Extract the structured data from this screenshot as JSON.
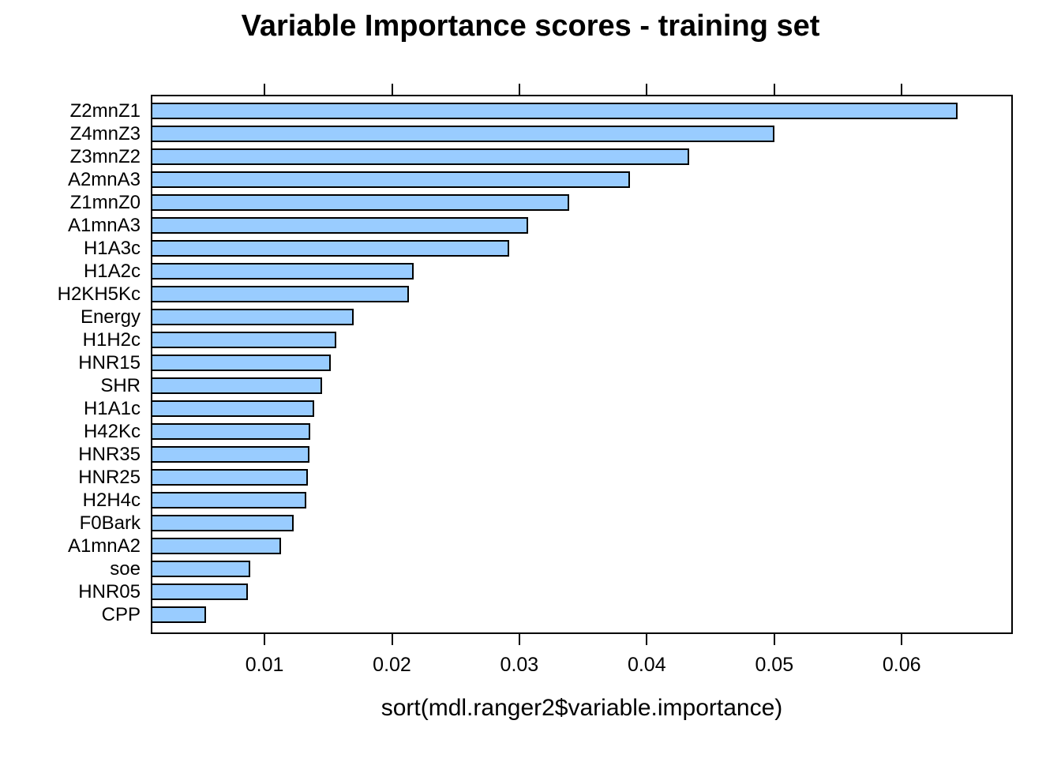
{
  "figure": {
    "background": "#ffffff",
    "text_color": "#000000"
  },
  "chart_data": {
    "type": "bar",
    "orientation": "horizontal",
    "title": "Variable Importance scores - training set",
    "xlabel": "sort(mdl.ranger2$variable.importance)",
    "ylabel": "",
    "categories_top_to_bottom": [
      "Z2mnZ1",
      "Z4mnZ3",
      "Z3mnZ2",
      "A2mnA3",
      "Z1mnZ0",
      "A1mnA3",
      "H1A3c",
      "H1A2c",
      "H2KH5Kc",
      "Energy",
      "H1H2c",
      "HNR15",
      "SHR",
      "H1A1c",
      "H42Kc",
      "HNR35",
      "HNR25",
      "H2H4c",
      "F0Bark",
      "A1mnA2",
      "soe",
      "HNR05",
      "CPP"
    ],
    "values": [
      0.0644,
      0.05,
      0.0433,
      0.0387,
      0.0339,
      0.0307,
      0.0292,
      0.0217,
      0.0213,
      0.017,
      0.0156,
      0.0152,
      0.0145,
      0.0139,
      0.0136,
      0.0135,
      0.0134,
      0.0133,
      0.0123,
      0.0113,
      0.0089,
      0.0087,
      0.0054
    ],
    "x_ticks": [
      0.01,
      0.02,
      0.03,
      0.04,
      0.05,
      0.06
    ],
    "x_tick_labels": [
      "0.01",
      "0.02",
      "0.03",
      "0.04",
      "0.05",
      "0.06"
    ],
    "xlim_rendered": [
      0.0012,
      0.0686
    ],
    "grid": false,
    "legend": false,
    "bar_color": "#99CCFF",
    "bar_border_color": "#000000",
    "frame": "full-box-with-top-and-bottom-ticks"
  }
}
